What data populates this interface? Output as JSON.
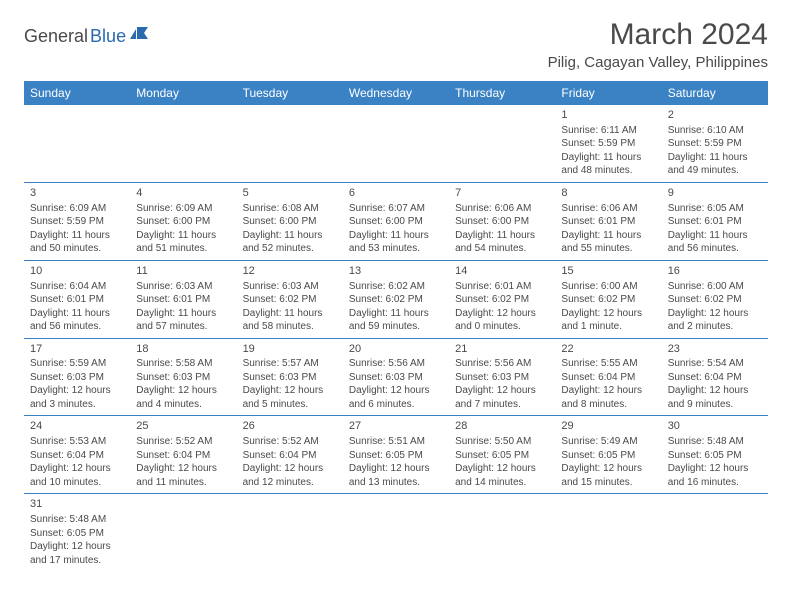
{
  "logo": {
    "part1": "General",
    "part2": "Blue"
  },
  "title": "March 2024",
  "location": "Pilig, Cagayan Valley, Philippines",
  "colors": {
    "header_bg": "#3a82c4",
    "header_text": "#ffffff",
    "cell_border": "#3a82c4",
    "body_text": "#4a4a4a",
    "logo_accent": "#2a6bb0"
  },
  "weekdays": [
    "Sunday",
    "Monday",
    "Tuesday",
    "Wednesday",
    "Thursday",
    "Friday",
    "Saturday"
  ],
  "weeks": [
    [
      null,
      null,
      null,
      null,
      null,
      {
        "n": "1",
        "sr": "Sunrise: 6:11 AM",
        "ss": "Sunset: 5:59 PM",
        "dl": "Daylight: 11 hours and 48 minutes."
      },
      {
        "n": "2",
        "sr": "Sunrise: 6:10 AM",
        "ss": "Sunset: 5:59 PM",
        "dl": "Daylight: 11 hours and 49 minutes."
      }
    ],
    [
      {
        "n": "3",
        "sr": "Sunrise: 6:09 AM",
        "ss": "Sunset: 5:59 PM",
        "dl": "Daylight: 11 hours and 50 minutes."
      },
      {
        "n": "4",
        "sr": "Sunrise: 6:09 AM",
        "ss": "Sunset: 6:00 PM",
        "dl": "Daylight: 11 hours and 51 minutes."
      },
      {
        "n": "5",
        "sr": "Sunrise: 6:08 AM",
        "ss": "Sunset: 6:00 PM",
        "dl": "Daylight: 11 hours and 52 minutes."
      },
      {
        "n": "6",
        "sr": "Sunrise: 6:07 AM",
        "ss": "Sunset: 6:00 PM",
        "dl": "Daylight: 11 hours and 53 minutes."
      },
      {
        "n": "7",
        "sr": "Sunrise: 6:06 AM",
        "ss": "Sunset: 6:00 PM",
        "dl": "Daylight: 11 hours and 54 minutes."
      },
      {
        "n": "8",
        "sr": "Sunrise: 6:06 AM",
        "ss": "Sunset: 6:01 PM",
        "dl": "Daylight: 11 hours and 55 minutes."
      },
      {
        "n": "9",
        "sr": "Sunrise: 6:05 AM",
        "ss": "Sunset: 6:01 PM",
        "dl": "Daylight: 11 hours and 56 minutes."
      }
    ],
    [
      {
        "n": "10",
        "sr": "Sunrise: 6:04 AM",
        "ss": "Sunset: 6:01 PM",
        "dl": "Daylight: 11 hours and 56 minutes."
      },
      {
        "n": "11",
        "sr": "Sunrise: 6:03 AM",
        "ss": "Sunset: 6:01 PM",
        "dl": "Daylight: 11 hours and 57 minutes."
      },
      {
        "n": "12",
        "sr": "Sunrise: 6:03 AM",
        "ss": "Sunset: 6:02 PM",
        "dl": "Daylight: 11 hours and 58 minutes."
      },
      {
        "n": "13",
        "sr": "Sunrise: 6:02 AM",
        "ss": "Sunset: 6:02 PM",
        "dl": "Daylight: 11 hours and 59 minutes."
      },
      {
        "n": "14",
        "sr": "Sunrise: 6:01 AM",
        "ss": "Sunset: 6:02 PM",
        "dl": "Daylight: 12 hours and 0 minutes."
      },
      {
        "n": "15",
        "sr": "Sunrise: 6:00 AM",
        "ss": "Sunset: 6:02 PM",
        "dl": "Daylight: 12 hours and 1 minute."
      },
      {
        "n": "16",
        "sr": "Sunrise: 6:00 AM",
        "ss": "Sunset: 6:02 PM",
        "dl": "Daylight: 12 hours and 2 minutes."
      }
    ],
    [
      {
        "n": "17",
        "sr": "Sunrise: 5:59 AM",
        "ss": "Sunset: 6:03 PM",
        "dl": "Daylight: 12 hours and 3 minutes."
      },
      {
        "n": "18",
        "sr": "Sunrise: 5:58 AM",
        "ss": "Sunset: 6:03 PM",
        "dl": "Daylight: 12 hours and 4 minutes."
      },
      {
        "n": "19",
        "sr": "Sunrise: 5:57 AM",
        "ss": "Sunset: 6:03 PM",
        "dl": "Daylight: 12 hours and 5 minutes."
      },
      {
        "n": "20",
        "sr": "Sunrise: 5:56 AM",
        "ss": "Sunset: 6:03 PM",
        "dl": "Daylight: 12 hours and 6 minutes."
      },
      {
        "n": "21",
        "sr": "Sunrise: 5:56 AM",
        "ss": "Sunset: 6:03 PM",
        "dl": "Daylight: 12 hours and 7 minutes."
      },
      {
        "n": "22",
        "sr": "Sunrise: 5:55 AM",
        "ss": "Sunset: 6:04 PM",
        "dl": "Daylight: 12 hours and 8 minutes."
      },
      {
        "n": "23",
        "sr": "Sunrise: 5:54 AM",
        "ss": "Sunset: 6:04 PM",
        "dl": "Daylight: 12 hours and 9 minutes."
      }
    ],
    [
      {
        "n": "24",
        "sr": "Sunrise: 5:53 AM",
        "ss": "Sunset: 6:04 PM",
        "dl": "Daylight: 12 hours and 10 minutes."
      },
      {
        "n": "25",
        "sr": "Sunrise: 5:52 AM",
        "ss": "Sunset: 6:04 PM",
        "dl": "Daylight: 12 hours and 11 minutes."
      },
      {
        "n": "26",
        "sr": "Sunrise: 5:52 AM",
        "ss": "Sunset: 6:04 PM",
        "dl": "Daylight: 12 hours and 12 minutes."
      },
      {
        "n": "27",
        "sr": "Sunrise: 5:51 AM",
        "ss": "Sunset: 6:05 PM",
        "dl": "Daylight: 12 hours and 13 minutes."
      },
      {
        "n": "28",
        "sr": "Sunrise: 5:50 AM",
        "ss": "Sunset: 6:05 PM",
        "dl": "Daylight: 12 hours and 14 minutes."
      },
      {
        "n": "29",
        "sr": "Sunrise: 5:49 AM",
        "ss": "Sunset: 6:05 PM",
        "dl": "Daylight: 12 hours and 15 minutes."
      },
      {
        "n": "30",
        "sr": "Sunrise: 5:48 AM",
        "ss": "Sunset: 6:05 PM",
        "dl": "Daylight: 12 hours and 16 minutes."
      }
    ],
    [
      {
        "n": "31",
        "sr": "Sunrise: 5:48 AM",
        "ss": "Sunset: 6:05 PM",
        "dl": "Daylight: 12 hours and 17 minutes."
      },
      null,
      null,
      null,
      null,
      null,
      null
    ]
  ]
}
